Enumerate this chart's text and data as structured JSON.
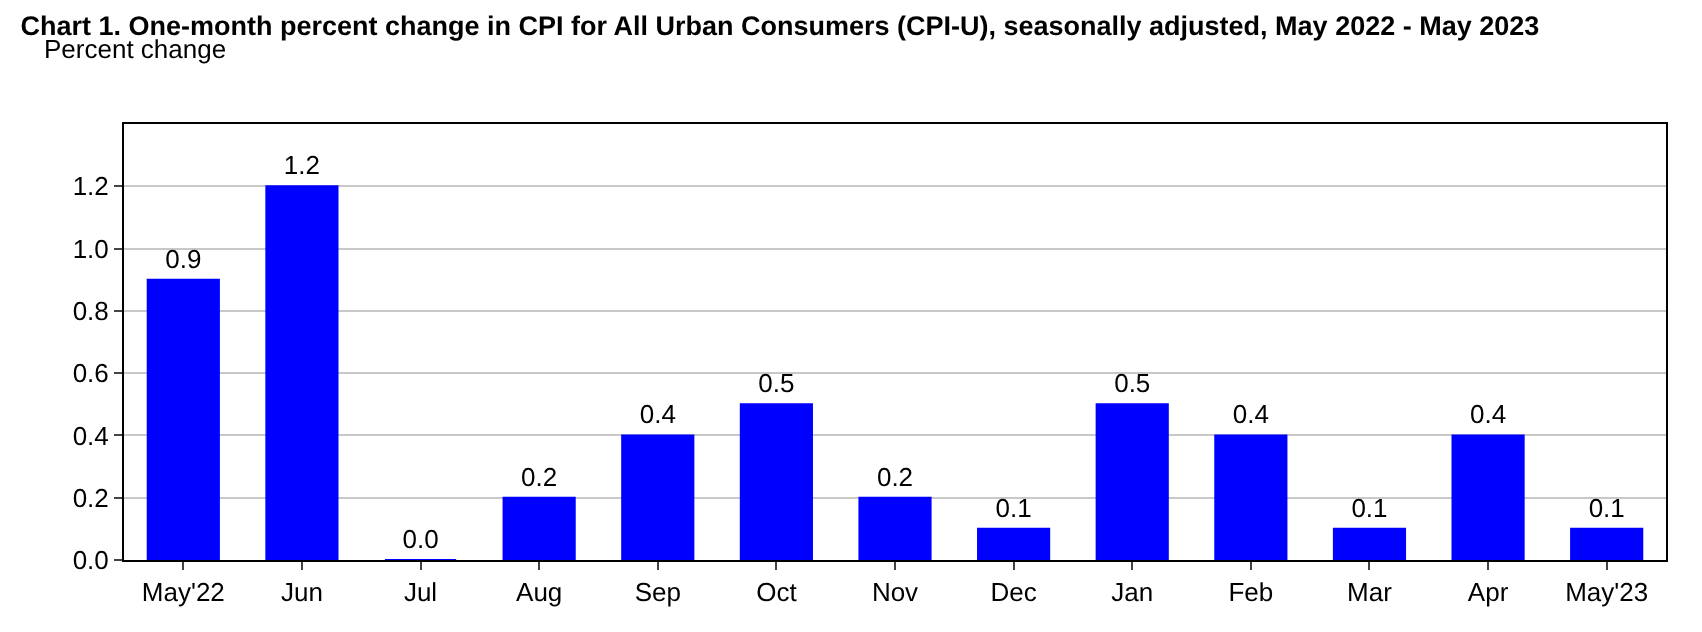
{
  "chart_data": {
    "type": "bar",
    "title": "Chart 1. One-month percent change in CPI for All Urban Consumers (CPI-U), seasonally adjusted, May 2022 - May 2023",
    "ylabel": "Percent change",
    "categories": [
      "May'22",
      "Jun",
      "Jul",
      "Aug",
      "Sep",
      "Oct",
      "Nov",
      "Dec",
      "Jan",
      "Feb",
      "Mar",
      "Apr",
      "May'23"
    ],
    "values": [
      0.9,
      1.2,
      0.0,
      0.2,
      0.4,
      0.5,
      0.2,
      0.1,
      0.5,
      0.4,
      0.1,
      0.4,
      0.1
    ],
    "value_labels": [
      "0.9",
      "1.2",
      "0.0",
      "0.2",
      "0.4",
      "0.5",
      "0.2",
      "0.1",
      "0.5",
      "0.4",
      "0.1",
      "0.4",
      "0.1"
    ],
    "color": "#0000ff",
    "ylim": [
      0,
      1.4
    ],
    "yticks": [
      {
        "value": 0,
        "label": "0.0"
      },
      {
        "value": 0.2,
        "label": "0.2"
      },
      {
        "value": 0.4,
        "label": "0.4"
      },
      {
        "value": 0.6,
        "label": "0.6"
      },
      {
        "value": 0.8,
        "label": "0.8"
      },
      {
        "value": 1.0,
        "label": "1.0"
      },
      {
        "value": 1.2,
        "label": "1.2"
      }
    ],
    "grid": "y"
  }
}
